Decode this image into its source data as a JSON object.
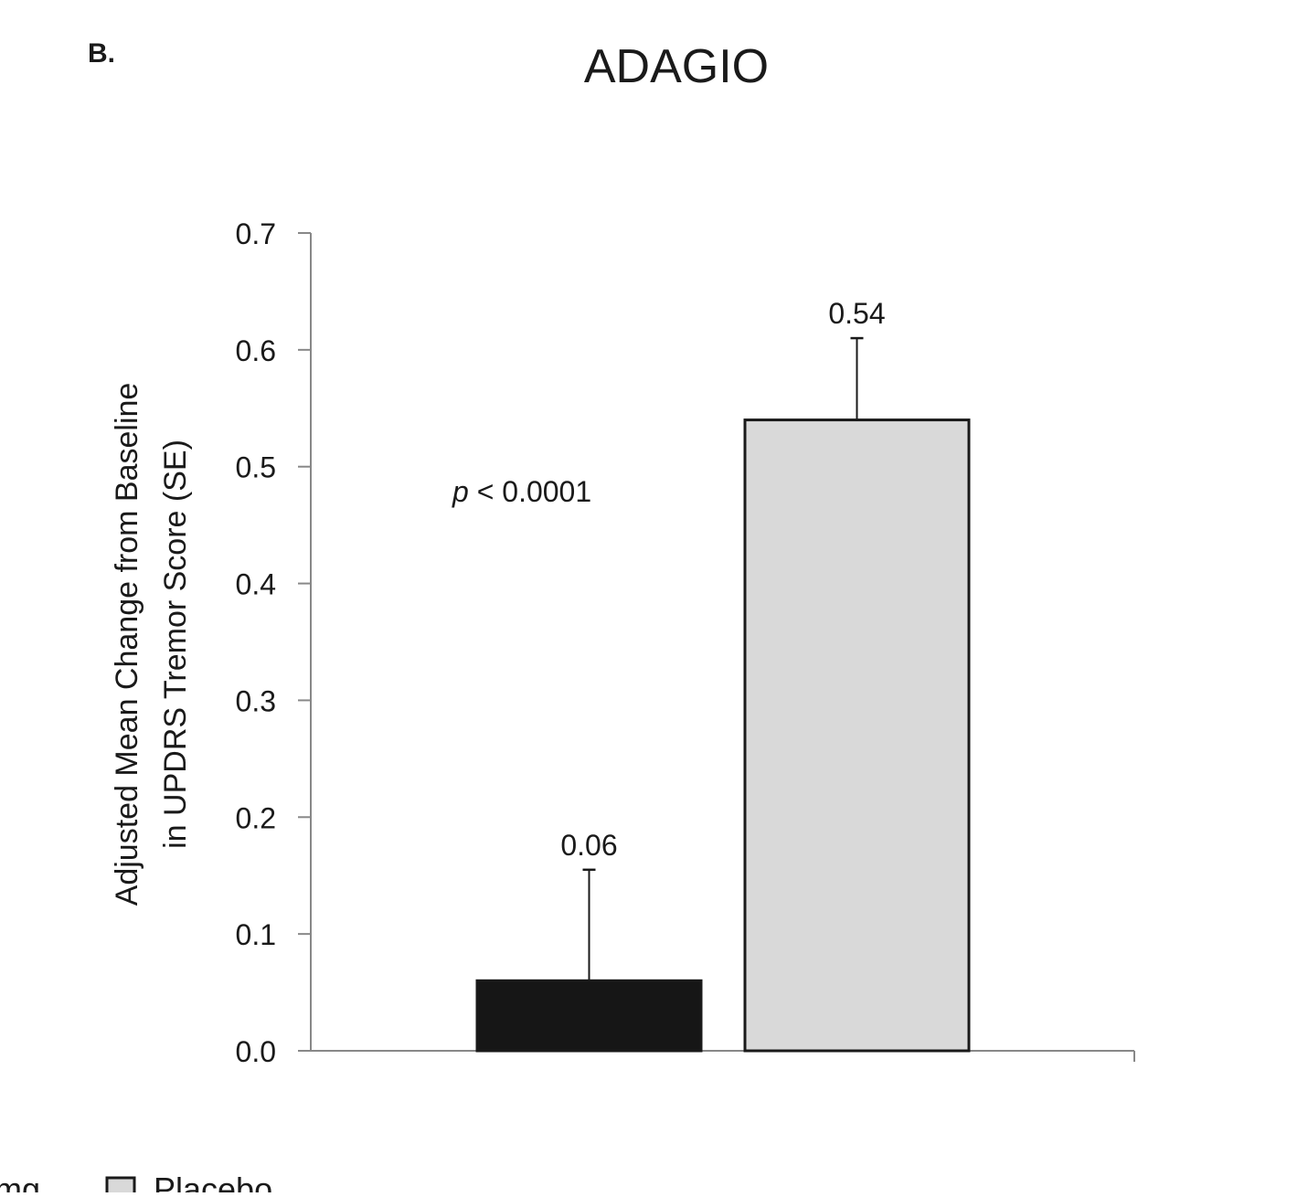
{
  "panel_label": "B.",
  "annotation": {
    "p_symbol": "p",
    "p_text": " < 0.0001"
  },
  "chart_data": {
    "type": "bar",
    "title": "ADAGIO",
    "ylabel_lines": [
      "Adjusted Mean Change from Baseline",
      "in UPDRS Tremor Score (SE)"
    ],
    "xlabel": "",
    "ylim": [
      0.0,
      0.7
    ],
    "yticks": [
      {
        "value": 0.0,
        "label": "0.0"
      },
      {
        "value": 0.1,
        "label": "0.1"
      },
      {
        "value": 0.2,
        "label": "0.2"
      },
      {
        "value": 0.3,
        "label": "0.3"
      },
      {
        "value": 0.4,
        "label": "0.4"
      },
      {
        "value": 0.5,
        "label": "0.5"
      },
      {
        "value": 0.6,
        "label": "0.6"
      },
      {
        "value": 0.7,
        "label": "0.7"
      }
    ],
    "grid": false,
    "bars": [
      {
        "value": 0.06,
        "se": 0.095,
        "label": "0.06",
        "color": "#161616"
      },
      {
        "value": 0.54,
        "se": 0.07,
        "label": "0.54",
        "color": "#d9d9d9"
      }
    ],
    "legend": {
      "placement": "bottom-left",
      "entries": [
        {
          "name": "mg",
          "color": "#161616"
        },
        {
          "name": "Placebo",
          "color": "#d9d9d9"
        }
      ]
    }
  }
}
